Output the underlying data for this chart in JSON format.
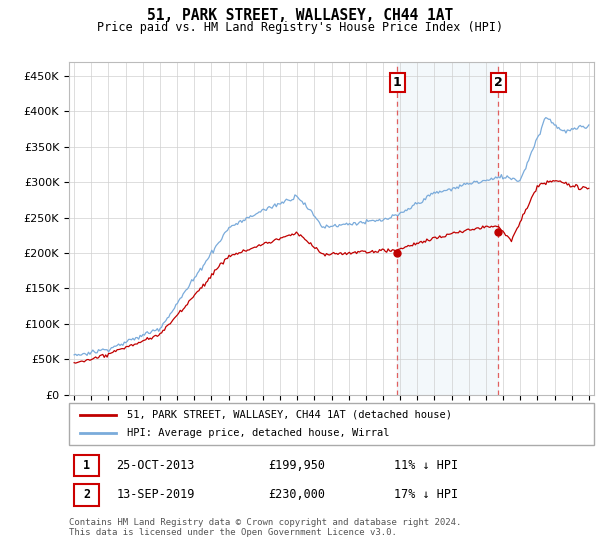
{
  "title": "51, PARK STREET, WALLASEY, CH44 1AT",
  "subtitle": "Price paid vs. HM Land Registry's House Price Index (HPI)",
  "ylim": [
    0,
    470000
  ],
  "yticks": [
    0,
    50000,
    100000,
    150000,
    200000,
    250000,
    300000,
    350000,
    400000,
    450000
  ],
  "sale1_price": 199950,
  "sale1_x": 2013.83,
  "sale2_price": 230000,
  "sale2_x": 2019.71,
  "hpi_color": "#7aabdb",
  "price_color": "#c00000",
  "vline_color": "#e06060",
  "shade_color": "#d8e8f5",
  "legend_label1": "51, PARK STREET, WALLASEY, CH44 1AT (detached house)",
  "legend_label2": "HPI: Average price, detached house, Wirral",
  "footer": "Contains HM Land Registry data © Crown copyright and database right 2024.\nThis data is licensed under the Open Government Licence v3.0.",
  "table_row1": [
    "1",
    "25-OCT-2013",
    "£199,950",
    "11% ↓ HPI"
  ],
  "table_row2": [
    "2",
    "13-SEP-2019",
    "£230,000",
    "17% ↓ HPI"
  ]
}
